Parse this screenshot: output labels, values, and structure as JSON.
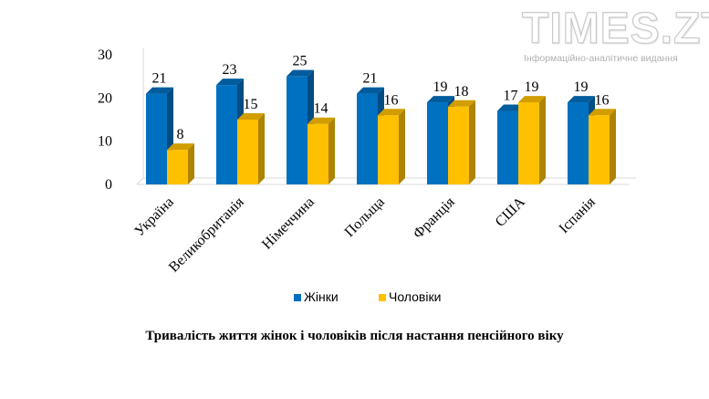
{
  "logo": {
    "main": "TIMES.ZT",
    "subtitle": "Інформаційно-аналітичне видання"
  },
  "chart_data": {
    "type": "bar",
    "categories": [
      "Україна",
      "Великобританія",
      "Німеччина",
      "Польща",
      "Франція",
      "США",
      "Іспанія"
    ],
    "series": [
      {
        "name": "Жінки",
        "values": [
          21,
          23,
          25,
          21,
          19,
          17,
          19
        ],
        "color": "#0070c0"
      },
      {
        "name": "Чоловіки",
        "values": [
          8,
          15,
          14,
          16,
          18,
          19,
          16
        ],
        "color": "#ffc000"
      }
    ],
    "ylim": [
      0,
      30
    ],
    "yticks": [
      "0",
      "10",
      "20",
      "30"
    ],
    "legend_position": "bottom",
    "grid": false,
    "caption": "Тривалість  життя жінок і чоловіків після настання пенсійного віку"
  }
}
